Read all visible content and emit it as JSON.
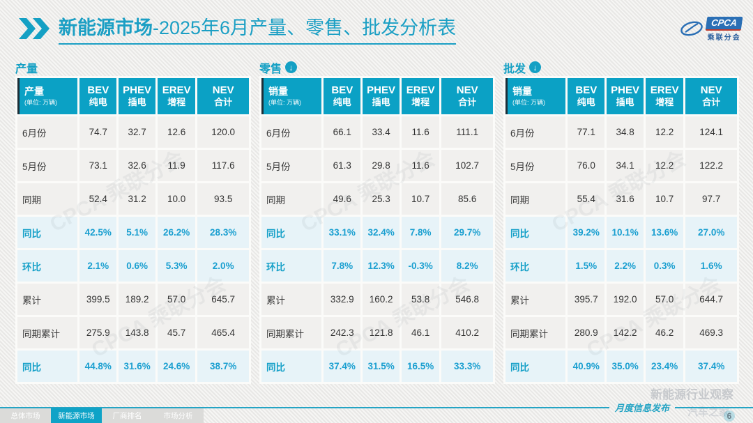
{
  "header": {
    "title_bold": "新能源市场",
    "title_rest": "-2025年6月产量、零售、批发分析表",
    "logo": {
      "cpca": "CPCA",
      "org": "乘联分会"
    }
  },
  "accent_color": "#14a0c4",
  "percent_color": "#1a9fd0",
  "columns": [
    {
      "en": "BEV",
      "cn": "纯电"
    },
    {
      "en": "PHEV",
      "cn": "插电"
    },
    {
      "en": "EREV",
      "cn": "增程"
    },
    {
      "en": "NEV",
      "cn": "合计"
    }
  ],
  "row_labels": [
    "6月份",
    "5月份",
    "同期",
    "同比",
    "环比",
    "累计",
    "同期累计",
    "同比"
  ],
  "row_types": [
    "value",
    "value",
    "value",
    "percent",
    "percent",
    "value",
    "value",
    "percent"
  ],
  "tables": [
    {
      "section": "产量",
      "header_label": "产量",
      "unit": "(单位: 万辆)",
      "rows": [
        [
          "74.7",
          "32.7",
          "12.6",
          "120.0"
        ],
        [
          "73.1",
          "32.6",
          "11.9",
          "117.6"
        ],
        [
          "52.4",
          "31.2",
          "10.0",
          "93.5"
        ],
        [
          "42.5%",
          "5.1%",
          "26.2%",
          "28.3%"
        ],
        [
          "2.1%",
          "0.6%",
          "5.3%",
          "2.0%"
        ],
        [
          "399.5",
          "189.2",
          "57.0",
          "645.7"
        ],
        [
          "275.9",
          "143.8",
          "45.7",
          "465.4"
        ],
        [
          "44.8%",
          "31.6%",
          "24.6%",
          "38.7%"
        ]
      ]
    },
    {
      "section": "零售",
      "header_label": "销量",
      "unit": "(单位: 万辆)",
      "rows": [
        [
          "66.1",
          "33.4",
          "11.6",
          "111.1"
        ],
        [
          "61.3",
          "29.8",
          "11.6",
          "102.7"
        ],
        [
          "49.6",
          "25.3",
          "10.7",
          "85.6"
        ],
        [
          "33.1%",
          "32.4%",
          "7.8%",
          "29.7%"
        ],
        [
          "7.8%",
          "12.3%",
          "-0.3%",
          "8.2%"
        ],
        [
          "332.9",
          "160.2",
          "53.8",
          "546.8"
        ],
        [
          "242.3",
          "121.8",
          "46.1",
          "410.2"
        ],
        [
          "37.4%",
          "31.5%",
          "16.5%",
          "33.3%"
        ]
      ]
    },
    {
      "section": "批发",
      "header_label": "销量",
      "unit": "(单位: 万辆)",
      "rows": [
        [
          "77.1",
          "34.8",
          "12.2",
          "124.1"
        ],
        [
          "76.0",
          "34.1",
          "12.2",
          "122.2"
        ],
        [
          "55.4",
          "31.6",
          "10.7",
          "97.7"
        ],
        [
          "39.2%",
          "10.1%",
          "13.6%",
          "27.0%"
        ],
        [
          "1.5%",
          "2.2%",
          "0.3%",
          "1.6%"
        ],
        [
          "395.7",
          "192.0",
          "57.0",
          "644.7"
        ],
        [
          "280.9",
          "142.2",
          "46.2",
          "469.3"
        ],
        [
          "40.9%",
          "35.0%",
          "23.4%",
          "37.4%"
        ]
      ]
    }
  ],
  "watermark": {
    "brand": "CPCA 乘联分会",
    "source_line1": "新能源行业观察",
    "source_line2": "汽车之家"
  },
  "footer": {
    "note": "月度信息发布",
    "tabs": [
      "总体市场",
      "新能源市场",
      "厂商排名",
      "市场分析"
    ],
    "active_tab_index": 1,
    "page_number": "6"
  }
}
